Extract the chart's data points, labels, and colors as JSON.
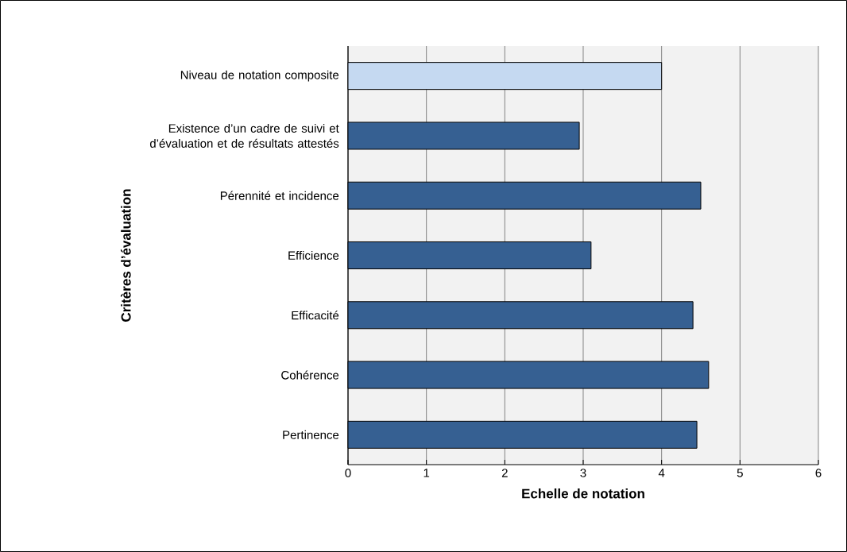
{
  "chart_data": {
    "type": "bar",
    "orientation": "horizontal",
    "categories": [
      "Niveau de notation composite",
      "Existence d’un cadre de suivi et d’évaluation et de résultats attestés",
      "Pérennité et incidence",
      "Efficience",
      "Efficacité",
      "Cohérence",
      "Pertinence"
    ],
    "values": [
      4.0,
      2.95,
      4.5,
      3.1,
      4.4,
      4.6,
      4.45
    ],
    "colors": [
      "#c5d9f1",
      "#366092",
      "#366092",
      "#366092",
      "#366092",
      "#366092",
      "#366092"
    ],
    "xlabel": "Echelle de notation",
    "ylabel": "Critères d’évaluation",
    "xlim": [
      0,
      6
    ],
    "xticks": [
      0,
      1,
      2,
      3,
      4,
      5,
      6
    ],
    "grid": "x"
  }
}
